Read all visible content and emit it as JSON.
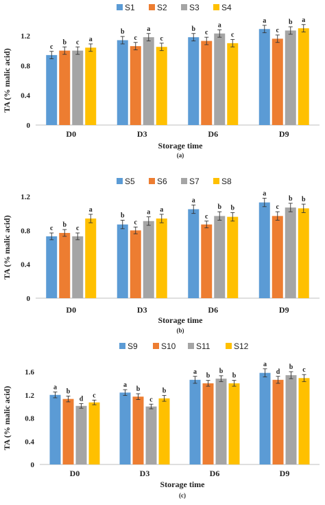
{
  "chart_data": [
    {
      "type": "bar",
      "caption": "(a)",
      "xlabel": "Storage time",
      "ylabel": "TA (% malic acid)",
      "categories": [
        "D0",
        "D3",
        "D6",
        "D9"
      ],
      "ylim": [
        0,
        1.4
      ],
      "yticks": [
        0,
        0.4,
        0.8,
        1.2
      ],
      "tick_labels": [
        "0",
        "0.4",
        "0.8",
        "1.2"
      ],
      "legend_position": "top-center",
      "series": [
        {
          "name": "S1",
          "color": "#5B9BD5",
          "values": [
            0.94,
            1.14,
            1.18,
            1.29
          ],
          "errors": [
            0.05,
            0.05,
            0.05,
            0.05
          ],
          "letters": [
            "c",
            "b",
            "b",
            "a"
          ]
        },
        {
          "name": "S2",
          "color": "#ED7D31",
          "values": [
            1.0,
            1.06,
            1.13,
            1.16
          ],
          "errors": [
            0.05,
            0.05,
            0.05,
            0.05
          ],
          "letters": [
            "b",
            "c",
            "c",
            "c"
          ]
        },
        {
          "name": "S3",
          "color": "#A5A5A5",
          "values": [
            1.0,
            1.18,
            1.23,
            1.27
          ],
          "errors": [
            0.05,
            0.05,
            0.05,
            0.05
          ],
          "letters": [
            "c",
            "a",
            "a",
            "b"
          ]
        },
        {
          "name": "S4",
          "color": "#FFC000",
          "values": [
            1.04,
            1.05,
            1.1,
            1.3
          ],
          "errors": [
            0.05,
            0.05,
            0.05,
            0.05
          ],
          "letters": [
            "a",
            "c",
            "c",
            "a"
          ]
        }
      ]
    },
    {
      "type": "bar",
      "caption": "(b)",
      "xlabel": "Storage time",
      "ylabel": "TA (% malic acid)",
      "categories": [
        "D0",
        "D3",
        "D6",
        "D9"
      ],
      "ylim": [
        0,
        1.2
      ],
      "yticks": [
        0,
        0.4,
        0.8,
        1.2
      ],
      "tick_labels": [
        "0",
        "0.4",
        "0.8",
        "1.2"
      ],
      "legend_position": "top-center",
      "series": [
        {
          "name": "S5",
          "color": "#5B9BD5",
          "values": [
            0.73,
            0.87,
            1.05,
            1.13
          ],
          "errors": [
            0.04,
            0.05,
            0.05,
            0.05
          ],
          "letters": [
            "c",
            "b",
            "a",
            "a"
          ]
        },
        {
          "name": "S6",
          "color": "#ED7D31",
          "values": [
            0.77,
            0.8,
            0.87,
            0.97
          ],
          "errors": [
            0.04,
            0.04,
            0.04,
            0.05
          ],
          "letters": [
            "b",
            "c",
            "c",
            "c"
          ]
        },
        {
          "name": "S7",
          "color": "#A5A5A5",
          "values": [
            0.73,
            0.91,
            0.97,
            1.07
          ],
          "errors": [
            0.04,
            0.05,
            0.05,
            0.05
          ],
          "letters": [
            "c",
            "a",
            "b",
            "b"
          ]
        },
        {
          "name": "S8",
          "color": "#FFC000",
          "values": [
            0.94,
            0.94,
            0.96,
            1.06
          ],
          "errors": [
            0.05,
            0.05,
            0.05,
            0.05
          ],
          "letters": [
            "a",
            "a",
            "b",
            "b"
          ]
        }
      ]
    },
    {
      "type": "bar",
      "caption": "(c)",
      "xlabel": "Storage time",
      "ylabel": "TA (% malic acid)",
      "categories": [
        "D0",
        "D3",
        "D6",
        "D9"
      ],
      "ylim": [
        0,
        1.7
      ],
      "yticks": [
        0,
        0.4,
        0.8,
        1.2,
        1.6
      ],
      "tick_labels": [
        "0",
        "0.4",
        "0.8",
        "1.2",
        "1.6"
      ],
      "legend_position": "top-center",
      "series": [
        {
          "name": "S9",
          "color": "#5B9BD5",
          "values": [
            1.2,
            1.24,
            1.46,
            1.58
          ],
          "errors": [
            0.05,
            0.05,
            0.06,
            0.07
          ],
          "letters": [
            "a",
            "a",
            "a",
            "a"
          ]
        },
        {
          "name": "S10",
          "color": "#ED7D31",
          "values": [
            1.13,
            1.17,
            1.4,
            1.46
          ],
          "errors": [
            0.05,
            0.05,
            0.05,
            0.06
          ],
          "letters": [
            "b",
            "b",
            "b",
            "d"
          ]
        },
        {
          "name": "S11",
          "color": "#A5A5A5",
          "values": [
            1.01,
            1.0,
            1.48,
            1.54
          ],
          "errors": [
            0.04,
            0.04,
            0.05,
            0.06
          ],
          "letters": [
            "d",
            "c",
            "b",
            "b"
          ]
        },
        {
          "name": "S12",
          "color": "#FFC000",
          "values": [
            1.07,
            1.14,
            1.4,
            1.49
          ],
          "errors": [
            0.04,
            0.05,
            0.05,
            0.06
          ],
          "letters": [
            "c",
            "b",
            "b",
            "c"
          ]
        }
      ]
    }
  ]
}
